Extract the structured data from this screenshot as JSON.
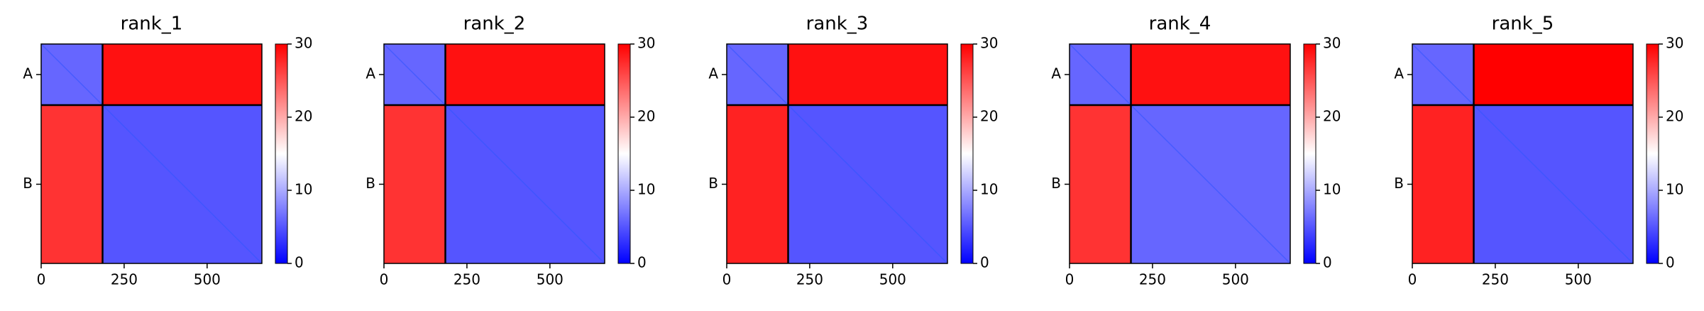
{
  "chart_data": [
    {
      "type": "heatmap",
      "title": "rank_1",
      "values": [
        [
          6,
          29
        ],
        [
          27,
          5
        ]
      ],
      "chain_breaks": [
        185
      ],
      "xlim": [
        0,
        665
      ],
      "xticks": [
        0,
        250,
        500
      ],
      "ylim": [
        665,
        0
      ],
      "yticks": [
        {
          "value": 92.5,
          "label": "A"
        },
        {
          "value": 425,
          "label": "B"
        }
      ],
      "colorbar": {
        "colormap": "bwr",
        "clim": [
          0,
          30
        ],
        "ticks": [
          0,
          10,
          20,
          30
        ]
      }
    },
    {
      "type": "heatmap",
      "title": "rank_2",
      "values": [
        [
          6,
          29
        ],
        [
          27,
          5
        ]
      ],
      "chain_breaks": [
        185
      ],
      "xlim": [
        0,
        665
      ],
      "xticks": [
        0,
        250,
        500
      ],
      "ylim": [
        665,
        0
      ],
      "yticks": [
        {
          "value": 92.5,
          "label": "A"
        },
        {
          "value": 425,
          "label": "B"
        }
      ],
      "colorbar": {
        "colormap": "bwr",
        "clim": [
          0,
          30
        ],
        "ticks": [
          0,
          10,
          20,
          30
        ]
      }
    },
    {
      "type": "heatmap",
      "title": "rank_3",
      "values": [
        [
          6,
          29
        ],
        [
          28,
          5
        ]
      ],
      "chain_breaks": [
        185
      ],
      "xlim": [
        0,
        665
      ],
      "xticks": [
        0,
        250,
        500
      ],
      "ylim": [
        665,
        0
      ],
      "yticks": [
        {
          "value": 92.5,
          "label": "A"
        },
        {
          "value": 425,
          "label": "B"
        }
      ],
      "colorbar": {
        "colormap": "bwr",
        "clim": [
          0,
          30
        ],
        "ticks": [
          0,
          10,
          20,
          30
        ]
      }
    },
    {
      "type": "heatmap",
      "title": "rank_4",
      "values": [
        [
          6,
          29
        ],
        [
          27,
          6
        ]
      ],
      "chain_breaks": [
        185
      ],
      "xlim": [
        0,
        665
      ],
      "xticks": [
        0,
        250,
        500
      ],
      "ylim": [
        665,
        0
      ],
      "yticks": [
        {
          "value": 92.5,
          "label": "A"
        },
        {
          "value": 425,
          "label": "B"
        }
      ],
      "colorbar": {
        "colormap": "bwr",
        "clim": [
          0,
          30
        ],
        "ticks": [
          0,
          10,
          20,
          30
        ]
      }
    },
    {
      "type": "heatmap",
      "title": "rank_5",
      "values": [
        [
          6,
          30
        ],
        [
          28,
          5
        ]
      ],
      "chain_breaks": [
        185
      ],
      "xlim": [
        0,
        665
      ],
      "xticks": [
        0,
        250,
        500
      ],
      "ylim": [
        665,
        0
      ],
      "yticks": [
        {
          "value": 92.5,
          "label": "A"
        },
        {
          "value": 425,
          "label": "B"
        }
      ],
      "colorbar": {
        "colormap": "bwr",
        "clim": [
          0,
          30
        ],
        "ticks": [
          0,
          10,
          20,
          30
        ]
      }
    }
  ]
}
